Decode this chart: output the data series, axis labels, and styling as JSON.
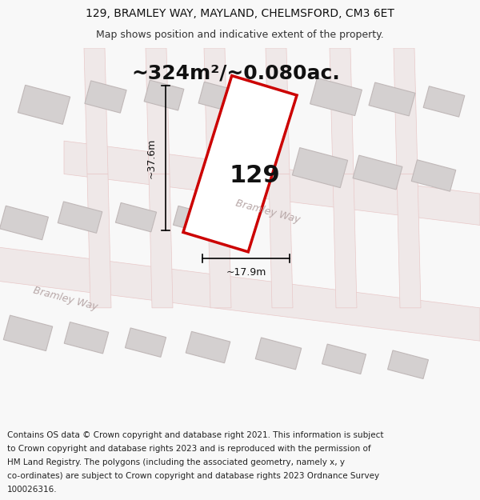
{
  "title_line1": "129, BRAMLEY WAY, MAYLAND, CHELMSFORD, CM3 6ET",
  "title_line2": "Map shows position and indicative extent of the property.",
  "area_text": "~324m²/~0.080ac.",
  "property_number": "129",
  "dim_height": "~37.6m",
  "dim_width": "~17.9m",
  "footer_lines": [
    "Contains OS data © Crown copyright and database right 2021. This information is subject",
    "to Crown copyright and database rights 2023 and is reproduced with the permission of",
    "HM Land Registry. The polygons (including the associated geometry, namely x, y",
    "co-ordinates) are subject to Crown copyright and database rights 2023 Ordnance Survey",
    "100026316."
  ],
  "bg_color": "#f8f8f8",
  "map_bg": "#f5efef",
  "road_fill": "#efe8e8",
  "road_edge": "#e8c8c8",
  "building_color": "#d4d0d0",
  "building_edge": "#c0b8b8",
  "plot_edge": "#cc0000",
  "plot_fill": "#ffffff",
  "title_fontsize": 10,
  "subtitle_fontsize": 9,
  "area_fontsize": 18,
  "number_fontsize": 22,
  "dim_fontsize": 9,
  "footer_fontsize": 7.5,
  "road_label_color": "#b8a8a8",
  "road_label_fontsize": 9
}
